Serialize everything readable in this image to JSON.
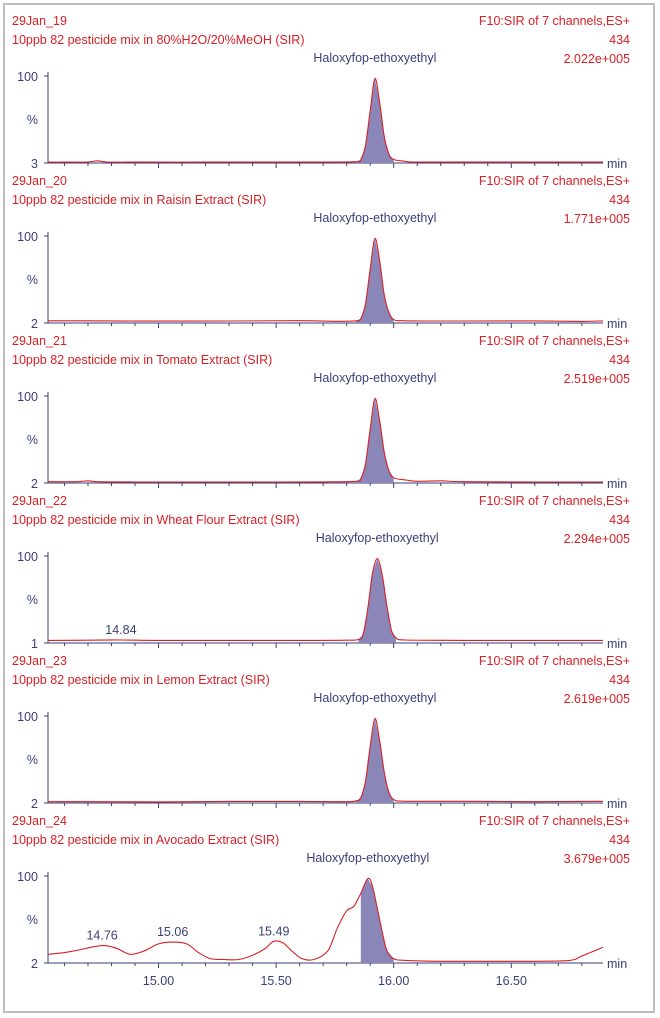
{
  "chart_data": {
    "type": "line",
    "x_unit": "min",
    "xlim": [
      14.53,
      16.89
    ],
    "x_ticks": [
      "15.00",
      "15.50",
      "16.00",
      "16.50"
    ],
    "y_label": "%",
    "y_top_label": "100",
    "colors": {
      "trace": "#d81f26",
      "fill": "#8a86b8",
      "axis": "#3a3f7a",
      "text_red": "#d81f26",
      "text_blue": "#3a3f7a"
    },
    "panels": [
      {
        "sample": "29Jan_19",
        "description": "10ppb 82 pesticide mix in 80%H2O/20%MeOH (SIR)",
        "function": "F10:SIR of 7 channels,ES+",
        "mass": "434",
        "intensity": "2.022e+005",
        "compound": "Haloxyfop-ethoxyethyl",
        "y_min_label": "3",
        "peak_rt": 15.92,
        "trace": [
          [
            14.53,
            1
          ],
          [
            14.6,
            1
          ],
          [
            14.7,
            1.2
          ],
          [
            14.74,
            2.5
          ],
          [
            14.78,
            1.2
          ],
          [
            14.9,
            1
          ],
          [
            15.2,
            1
          ],
          [
            15.5,
            1
          ],
          [
            15.7,
            1
          ],
          [
            15.84,
            1.5
          ],
          [
            15.86,
            4
          ],
          [
            15.88,
            20
          ],
          [
            15.9,
            60
          ],
          [
            15.92,
            97
          ],
          [
            15.94,
            70
          ],
          [
            15.96,
            30
          ],
          [
            15.98,
            10
          ],
          [
            16.0,
            4
          ],
          [
            16.05,
            2
          ],
          [
            16.1,
            1
          ],
          [
            16.4,
            1
          ],
          [
            16.89,
            1
          ]
        ],
        "peak_labels": []
      },
      {
        "sample": "29Jan_20",
        "description": "10ppb 82 pesticide mix in Raisin Extract (SIR)",
        "function": "F10:SIR of 7 channels,ES+",
        "mass": "434",
        "intensity": "1.771e+005",
        "compound": "Haloxyfop-ethoxyethyl",
        "y_min_label": "2",
        "peak_rt": 15.92,
        "trace": [
          [
            14.53,
            2.5
          ],
          [
            14.7,
            2.5
          ],
          [
            15.0,
            2.2
          ],
          [
            15.3,
            2.3
          ],
          [
            15.6,
            2.6
          ],
          [
            15.75,
            2
          ],
          [
            15.84,
            2.5
          ],
          [
            15.86,
            5
          ],
          [
            15.88,
            22
          ],
          [
            15.9,
            62
          ],
          [
            15.92,
            97
          ],
          [
            15.94,
            72
          ],
          [
            15.96,
            32
          ],
          [
            15.98,
            12
          ],
          [
            16.0,
            4
          ],
          [
            16.05,
            2.5
          ],
          [
            16.3,
            2.3
          ],
          [
            16.6,
            2.4
          ],
          [
            16.8,
            1.8
          ],
          [
            16.89,
            2.4
          ]
        ],
        "peak_labels": []
      },
      {
        "sample": "29Jan_21",
        "description": "10ppb 82 pesticide mix in Tomato Extract (SIR)",
        "function": "F10:SIR of 7 channels,ES+",
        "mass": "434",
        "intensity": "2.519e+005",
        "compound": "Haloxyfop-ethoxyethyl",
        "y_min_label": "2",
        "peak_rt": 15.92,
        "trace": [
          [
            14.53,
            1.5
          ],
          [
            14.65,
            1.5
          ],
          [
            14.7,
            2.5
          ],
          [
            14.74,
            1.5
          ],
          [
            14.9,
            1.2
          ],
          [
            15.2,
            1.2
          ],
          [
            15.5,
            1.2
          ],
          [
            15.7,
            1.3
          ],
          [
            15.84,
            2
          ],
          [
            15.86,
            5
          ],
          [
            15.88,
            22
          ],
          [
            15.9,
            62
          ],
          [
            15.92,
            97
          ],
          [
            15.94,
            72
          ],
          [
            15.96,
            35
          ],
          [
            15.98,
            14
          ],
          [
            16.0,
            6
          ],
          [
            16.05,
            3.5
          ],
          [
            16.1,
            2
          ],
          [
            16.2,
            2.5
          ],
          [
            16.3,
            1.5
          ],
          [
            16.6,
            1.2
          ],
          [
            16.89,
            1.2
          ]
        ],
        "peak_labels": []
      },
      {
        "sample": "29Jan_22",
        "description": "10ppb 82 pesticide mix in Wheat Flour Extract (SIR)",
        "function": "F10:SIR of 7 channels,ES+",
        "mass": "434",
        "intensity": "2.294e+005",
        "compound": "Haloxyfop-ethoxyethyl",
        "y_min_label": "1",
        "peak_rt": 15.93,
        "trace": [
          [
            14.53,
            3
          ],
          [
            14.7,
            3.2
          ],
          [
            14.84,
            3.5
          ],
          [
            15.0,
            3
          ],
          [
            15.3,
            3
          ],
          [
            15.6,
            3
          ],
          [
            15.8,
            3.2
          ],
          [
            15.85,
            4
          ],
          [
            15.87,
            10
          ],
          [
            15.89,
            40
          ],
          [
            15.91,
            80
          ],
          [
            15.93,
            97
          ],
          [
            15.95,
            80
          ],
          [
            15.97,
            45
          ],
          [
            15.99,
            15
          ],
          [
            16.01,
            6
          ],
          [
            16.05,
            3.5
          ],
          [
            16.3,
            3
          ],
          [
            16.6,
            3
          ],
          [
            16.89,
            3
          ]
        ],
        "peak_labels": [
          {
            "x": 14.84,
            "label": "14.84"
          }
        ]
      },
      {
        "sample": "29Jan_23",
        "description": "10ppb 82 pesticide mix in Lemon Extract (SIR)",
        "function": "F10:SIR of 7 channels,ES+",
        "mass": "434",
        "intensity": "2.619e+005",
        "compound": "Haloxyfop-ethoxyethyl",
        "y_min_label": "2",
        "peak_rt": 15.92,
        "trace": [
          [
            14.53,
            1.5
          ],
          [
            14.7,
            1.5
          ],
          [
            15.0,
            1.3
          ],
          [
            15.3,
            1.8
          ],
          [
            15.6,
            1.8
          ],
          [
            15.8,
            1.5
          ],
          [
            15.84,
            2.5
          ],
          [
            15.86,
            6
          ],
          [
            15.88,
            25
          ],
          [
            15.9,
            65
          ],
          [
            15.92,
            97
          ],
          [
            15.94,
            72
          ],
          [
            15.96,
            35
          ],
          [
            15.98,
            12
          ],
          [
            16.0,
            4
          ],
          [
            16.05,
            2
          ],
          [
            16.3,
            2
          ],
          [
            16.6,
            1.5
          ],
          [
            16.89,
            2
          ]
        ],
        "peak_labels": []
      },
      {
        "sample": "29Jan_24",
        "description": "10ppb 82 pesticide mix in Avocado Extract (SIR)",
        "function": "F10:SIR of 7 channels,ES+",
        "mass": "434",
        "intensity": "3.679e+005",
        "compound": "Haloxyfop-ethoxyethyl",
        "y_min_label": "2",
        "peak_rt": 15.89,
        "trace": [
          [
            14.53,
            10
          ],
          [
            14.6,
            12
          ],
          [
            14.66,
            15
          ],
          [
            14.76,
            20
          ],
          [
            14.82,
            17
          ],
          [
            14.88,
            10
          ],
          [
            14.94,
            14
          ],
          [
            15.0,
            22
          ],
          [
            15.06,
            24
          ],
          [
            15.12,
            22
          ],
          [
            15.17,
            12
          ],
          [
            15.22,
            5
          ],
          [
            15.28,
            4
          ],
          [
            15.34,
            4
          ],
          [
            15.4,
            9
          ],
          [
            15.45,
            16
          ],
          [
            15.49,
            25
          ],
          [
            15.53,
            23
          ],
          [
            15.57,
            13
          ],
          [
            15.61,
            5
          ],
          [
            15.66,
            4
          ],
          [
            15.72,
            14
          ],
          [
            15.76,
            40
          ],
          [
            15.8,
            60
          ],
          [
            15.83,
            65
          ],
          [
            15.86,
            80
          ],
          [
            15.89,
            97
          ],
          [
            15.91,
            88
          ],
          [
            15.94,
            50
          ],
          [
            15.97,
            15
          ],
          [
            16.0,
            5
          ],
          [
            16.05,
            3
          ],
          [
            16.2,
            2
          ],
          [
            16.4,
            2
          ],
          [
            16.6,
            2
          ],
          [
            16.75,
            3
          ],
          [
            16.8,
            8
          ],
          [
            16.89,
            18
          ]
        ],
        "peak_labels": [
          {
            "x": 14.76,
            "label": "14.76"
          },
          {
            "x": 15.06,
            "label": "15.06"
          },
          {
            "x": 15.49,
            "label": "15.49"
          }
        ]
      }
    ]
  }
}
